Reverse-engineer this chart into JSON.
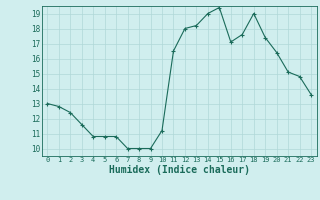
{
  "x": [
    0,
    1,
    2,
    3,
    4,
    5,
    6,
    7,
    8,
    9,
    10,
    11,
    12,
    13,
    14,
    15,
    16,
    17,
    18,
    19,
    20,
    21,
    22,
    23
  ],
  "y": [
    13.0,
    12.8,
    12.4,
    11.6,
    10.8,
    10.8,
    10.8,
    10.0,
    10.0,
    10.0,
    11.2,
    16.5,
    18.0,
    18.2,
    19.0,
    19.4,
    17.1,
    17.6,
    19.0,
    17.4,
    16.4,
    15.1,
    14.8,
    13.6
  ],
  "line_color": "#1a6b5a",
  "marker": "+",
  "marker_size": 3,
  "bg_color": "#d0eeee",
  "grid_color": "#b0d8d8",
  "tick_color": "#1a6b5a",
  "xlabel": "Humidex (Indice chaleur)",
  "xlabel_fontsize": 7,
  "xlim": [
    -0.5,
    23.5
  ],
  "ylim": [
    9.5,
    19.5
  ],
  "yticks": [
    10,
    11,
    12,
    13,
    14,
    15,
    16,
    17,
    18,
    19
  ],
  "xticks": [
    0,
    1,
    2,
    3,
    4,
    5,
    6,
    7,
    8,
    9,
    10,
    11,
    12,
    13,
    14,
    15,
    16,
    17,
    18,
    19,
    20,
    21,
    22,
    23
  ],
  "xtick_labels": [
    "0",
    "1",
    "2",
    "3",
    "4",
    "5",
    "6",
    "7",
    "8",
    "9",
    "10",
    "11",
    "12",
    "13",
    "14",
    "15",
    "16",
    "17",
    "18",
    "19",
    "20",
    "21",
    "22",
    "23"
  ],
  "line_width": 0.8
}
